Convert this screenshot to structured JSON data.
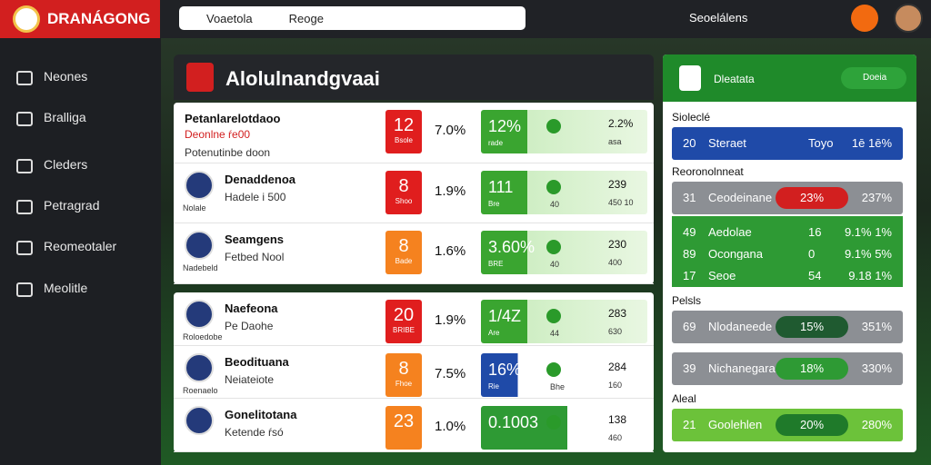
{
  "header": {
    "logo": "DRANÁGONG",
    "search_tab": "Voaetola",
    "search": "Reoge",
    "link": "Seoelálens"
  },
  "sidebar": [
    "Neones",
    "Bralliga",
    "Cleders",
    "Petragrad",
    "Reomeotaler",
    "Meolitle"
  ],
  "main": {
    "title": "Alolulnandgvaai",
    "groups": [
      [
        {
          "name": "Petanlarelotdaoo",
          "sub": "Deonlne ŕe00",
          "sub2": "Potenutinbe doon",
          "score": "12",
          "score_sub": "Bsole",
          "pct": "7.0%",
          "val": "12%",
          "val_sub": "rade",
          "right": "2.2%",
          "right_sub": "asa"
        },
        {
          "name": "Denaddenoa",
          "sub": "Hadele i 500",
          "tag": "Nolale",
          "score": "8",
          "score_sub": "Shoo",
          "pct": "1.9%",
          "val": "111",
          "val_sub": "Bre",
          "mid_sub": "40",
          "right": "239",
          "right_sub": "450 10"
        },
        {
          "name": "Seamgens",
          "sub": "Fetbed Nool",
          "tag": "Nadebeld",
          "score": "8",
          "score_sub": "Bade",
          "pct": "1.6%",
          "val": "3.60%",
          "val_sub": "BRE",
          "mid_sub": "40",
          "right": "230",
          "right_sub": "400"
        }
      ],
      [
        {
          "name": "Naefeona",
          "sub": "Pe Daohe",
          "tag": "Roloedobe",
          "score": "20",
          "score_sub": "BRIBE",
          "pct": "1.9%",
          "val": "1/4Z",
          "val_sub": "Are",
          "mid_sub": "44",
          "right": "283",
          "right_sub": "630"
        },
        {
          "name": "Beodituana",
          "sub": "Neiateiote",
          "tag": "Roenaelo",
          "score": "8",
          "score_sub": "Fhoe",
          "pct": "7.5%",
          "val": "16%",
          "val_sub": "Rie",
          "mid_sub": "Bhe",
          "right": "284",
          "right_sub": "160"
        },
        {
          "name": "Gonelitotana",
          "sub": "Ketende ŕsó",
          "score": "23",
          "pct": "1.0%",
          "val": "0.1003",
          "right": "138",
          "right_sub": "460"
        }
      ]
    ]
  },
  "panel": {
    "title": "Dleatata",
    "button": "Doeia",
    "sections": [
      {
        "title": "Sioleclé",
        "rows": [
          {
            "n": "20",
            "label": "Steraet",
            "mid": "Toyo",
            "right": "1ē 1ē%"
          }
        ]
      },
      {
        "title": "Reoronolnneat",
        "rows": [
          {
            "n": "31",
            "label": "Ceodeinane",
            "pill": "23%",
            "right": "237%"
          },
          {
            "n": "49",
            "label": "Aedolae",
            "mid": "16",
            "right": "9.1% 1%"
          },
          {
            "n": "89",
            "label": "Ocongana",
            "mid": "0",
            "right": "9.1% 5%"
          },
          {
            "n": "17",
            "label": "Seoe",
            "mid": "54",
            "right": "9.18 1%"
          }
        ]
      },
      {
        "title": "Pelsls",
        "rows": [
          {
            "n": "69",
            "label": "Nlodaneede",
            "pill": "15%",
            "right": "351%"
          },
          {
            "n": "39",
            "label": "Nichanegara",
            "pill": "18%",
            "right": "330%"
          }
        ]
      },
      {
        "title": "Aleal",
        "rows": [
          {
            "n": "21",
            "label": "Goolehlen",
            "pill": "20%",
            "right": "280%"
          }
        ]
      }
    ]
  }
}
